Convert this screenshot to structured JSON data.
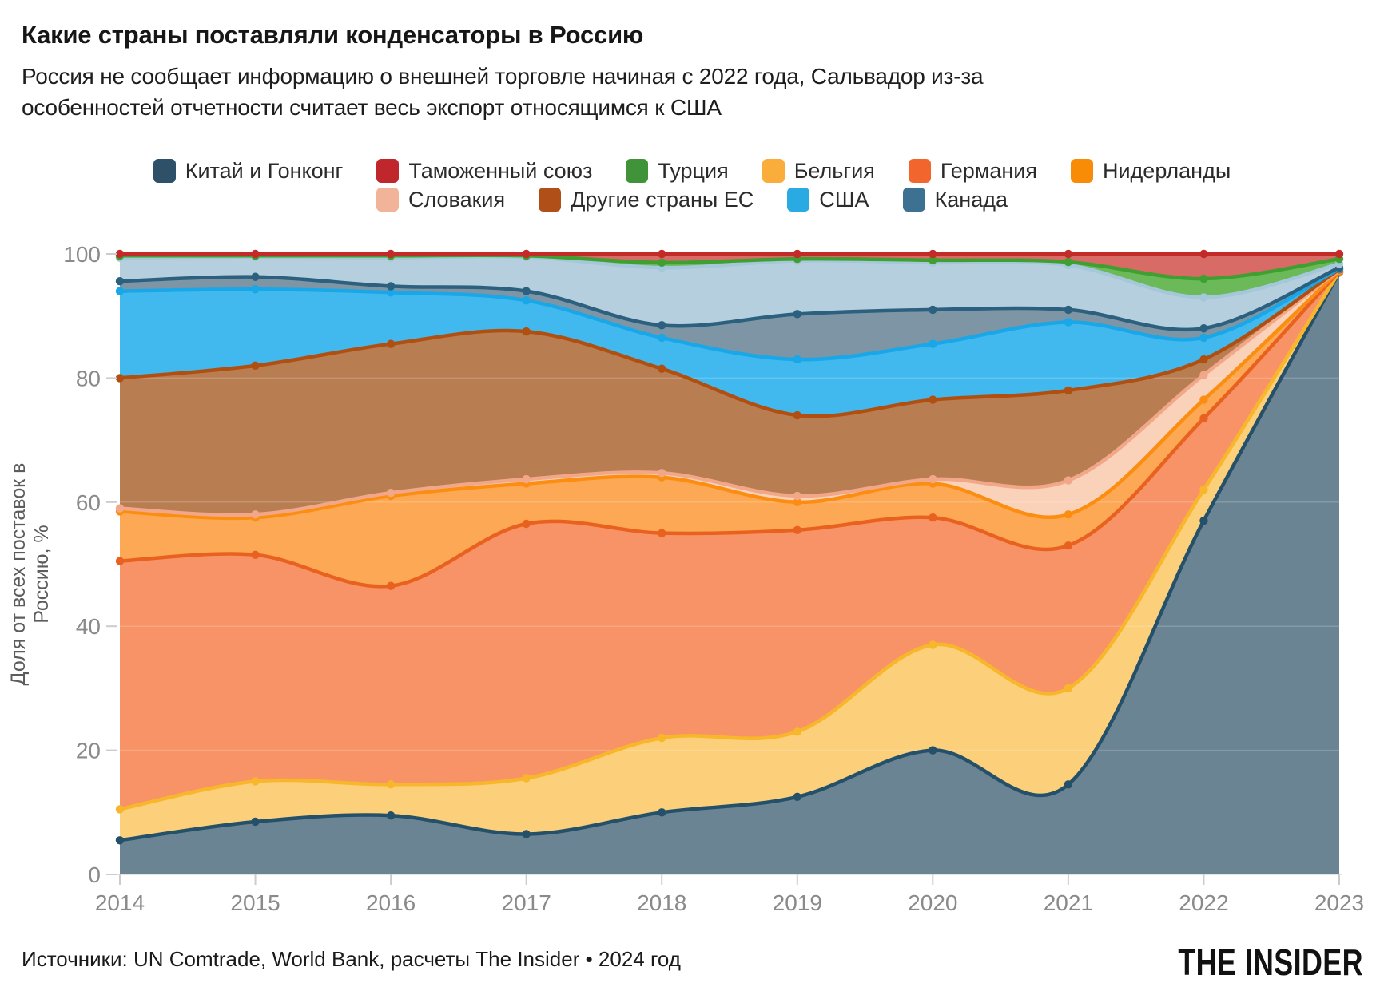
{
  "header": {
    "title": "Какие страны поставляли конденсаторы в Россию",
    "subtitle": "Россия не сообщает информацию о внешней торговле начиная с 2022 года, Сальвадор из-за\nособенностей отчетности считает весь экспорт относящимся к США"
  },
  "legend": {
    "rows": [
      6,
      4
    ],
    "items": [
      {
        "label": "Китай и Гонконг",
        "color": "#2e5068"
      },
      {
        "label": "Таможенный союз",
        "color": "#c0272d"
      },
      {
        "label": "Турция",
        "color": "#419339"
      },
      {
        "label": "Бельгия",
        "color": "#fbad3c"
      },
      {
        "label": "Германия",
        "color": "#f2662e"
      },
      {
        "label": "Нидерланды",
        "color": "#f98c07"
      },
      {
        "label": "Словакия",
        "color": "#f2b499"
      },
      {
        "label": "Другие страны ЕС",
        "color": "#b04f17"
      },
      {
        "label": "США",
        "color": "#29aae2"
      },
      {
        "label": "Канада",
        "color": "#3c7191"
      }
    ]
  },
  "chart_data": {
    "type": "area",
    "stacked": true,
    "unit": "%",
    "ylabel": "Доля от всех поставок в Россию, %",
    "ylim": [
      0,
      100
    ],
    "y_ticks": [
      100,
      80,
      60,
      40,
      20,
      0
    ],
    "x": [
      2014,
      2015,
      2016,
      2017,
      2018,
      2019,
      2020,
      2021,
      2022,
      2023
    ],
    "series": [
      {
        "name": "Китай и Гонконг",
        "color": "#2e5068",
        "values": [
          5.5,
          8.5,
          9.5,
          6.5,
          10,
          12.5,
          20,
          14.5,
          57,
          97
        ]
      },
      {
        "name": "Бельгия",
        "color": "#fbad3c",
        "values": [
          5,
          6.5,
          5,
          9,
          12,
          10.5,
          17,
          15.5,
          5,
          0.1
        ]
      },
      {
        "name": "Германия",
        "color": "#f2662e",
        "values": [
          40,
          36.5,
          32,
          41,
          33,
          32.5,
          20.5,
          23,
          11.5,
          0.1
        ]
      },
      {
        "name": "Нидерланды",
        "color": "#f98c07",
        "values": [
          8,
          6,
          14.5,
          6.5,
          9,
          4.5,
          5.5,
          5,
          3,
          0.1
        ]
      },
      {
        "name": "Словакия",
        "color": "#f2b499",
        "values": [
          0.5,
          0.5,
          0.5,
          0.7,
          0.7,
          1,
          0.7,
          5.5,
          4,
          0.1
        ]
      },
      {
        "name": "Другие страны ЕС",
        "color": "#b04f17",
        "values": [
          21,
          24,
          24,
          23.8,
          16.8,
          13,
          12.8,
          14.5,
          2.5,
          0.1
        ]
      },
      {
        "name": "США",
        "color": "#29aae2",
        "values": [
          14,
          12.3,
          8.3,
          5,
          5,
          9,
          9,
          11,
          3.5,
          0.1
        ]
      },
      {
        "name": "Канада",
        "color": "#3c7191",
        "values": [
          5.4,
          5.2,
          5.6,
          7,
          11.3,
          15.9,
          13.1,
          9.2,
          6.5,
          0.9
        ]
      },
      {
        "name": "Турция",
        "color": "#419339",
        "values": [
          0.3,
          0.2,
          0.3,
          0.2,
          0.8,
          0.3,
          0.4,
          0.5,
          3,
          0.8
        ]
      },
      {
        "name": "Таможенный союз",
        "color": "#c0272d",
        "values": [
          0.3,
          0.3,
          0.3,
          0.3,
          1.4,
          0.8,
          1,
          1.3,
          4,
          0.8
        ]
      }
    ],
    "boundaries": {
      "zero": [
        0,
        0,
        0,
        0,
        0,
        0,
        0,
        0,
        0,
        0
      ],
      "china": [
        5.5,
        8.5,
        9.5,
        6.5,
        10,
        12.5,
        20,
        14.5,
        57,
        97
      ],
      "belgium": [
        10.5,
        15,
        14.5,
        15.5,
        22,
        23,
        37,
        30,
        62,
        97.1
      ],
      "germany": [
        50.5,
        51.5,
        46.5,
        56.5,
        55,
        55.5,
        57.5,
        53,
        73.5,
        97.2
      ],
      "netherlands": [
        58.5,
        57.5,
        61,
        63,
        64,
        60,
        63,
        58,
        76.5,
        97.3
      ],
      "slovakia": [
        59,
        58,
        61.5,
        63.7,
        64.7,
        61,
        63.7,
        63.5,
        80.5,
        97.4
      ],
      "other_eu": [
        80,
        82,
        85.5,
        87.5,
        81.5,
        74,
        76.5,
        78,
        83,
        97.5
      ],
      "usa": [
        94,
        94.3,
        93.8,
        92.5,
        86.5,
        83,
        85.5,
        89,
        86.5,
        97.6
      ],
      "canada_line": [
        95.6,
        96.3,
        94.8,
        94,
        88.5,
        90.3,
        91,
        91,
        88,
        97.8
      ],
      "canada_top": [
        99.4,
        99.5,
        99.4,
        99.5,
        97.8,
        98.9,
        98.6,
        98.2,
        93,
        98.4
      ],
      "turkey": [
        99.7,
        99.7,
        99.7,
        99.7,
        98.6,
        99.2,
        99,
        98.7,
        96,
        99.2
      ],
      "hundred": [
        100,
        100,
        100,
        100,
        100,
        100,
        100,
        100,
        100,
        100
      ]
    },
    "bands": [
      {
        "series": "Китай и Гонконг",
        "lower": "zero",
        "upper": "china",
        "fill": "#6b8494",
        "stroke": "#24506a"
      },
      {
        "series": "Бельгия",
        "lower": "china",
        "upper": "belgium",
        "fill": "#fccf7b",
        "stroke": "#f8b72b"
      },
      {
        "series": "Германия",
        "lower": "belgium",
        "upper": "germany",
        "fill": "#f89367",
        "stroke": "#e9611f"
      },
      {
        "series": "Нидерланды",
        "lower": "germany",
        "upper": "netherlands",
        "fill": "#fda855",
        "stroke": "#fb8e11"
      },
      {
        "series": "Словакия",
        "lower": "netherlands",
        "upper": "slovakia",
        "fill": "#f9d2b9",
        "stroke": "#f2a888"
      },
      {
        "series": "Другие страны ЕС",
        "lower": "slovakia",
        "upper": "other_eu",
        "fill": "#b97d52",
        "stroke": "#b14f10"
      },
      {
        "series": "США",
        "lower": "other_eu",
        "upper": "usa",
        "fill": "#41b9ee",
        "stroke": "#18a7e8"
      },
      {
        "series": "Канада",
        "lower": "usa",
        "upper": "canada_line",
        "fill": "#7d95a5",
        "stroke": "#2c607f"
      },
      {
        "series": "Канада",
        "lower": "canada_line",
        "upper": "canada_top",
        "fill": "#b6cfde",
        "stroke": "#a4c7da"
      },
      {
        "series": "Турция",
        "lower": "canada_top",
        "upper": "turkey",
        "fill": "#6cb95a",
        "stroke": "#3f9f31"
      },
      {
        "series": "Таможенный союз",
        "lower": "turkey",
        "upper": "hundred",
        "fill": "#d96b66",
        "stroke": "#c42a28"
      }
    ],
    "grid_color": "#ededed",
    "axis_color": "#cccccc",
    "tick_label_color": "#8a8a8a"
  },
  "footer": {
    "source": "Источники: UN Comtrade, World Bank, расчеты The Insider • 2024 год",
    "logo": "THE INSIDER"
  }
}
